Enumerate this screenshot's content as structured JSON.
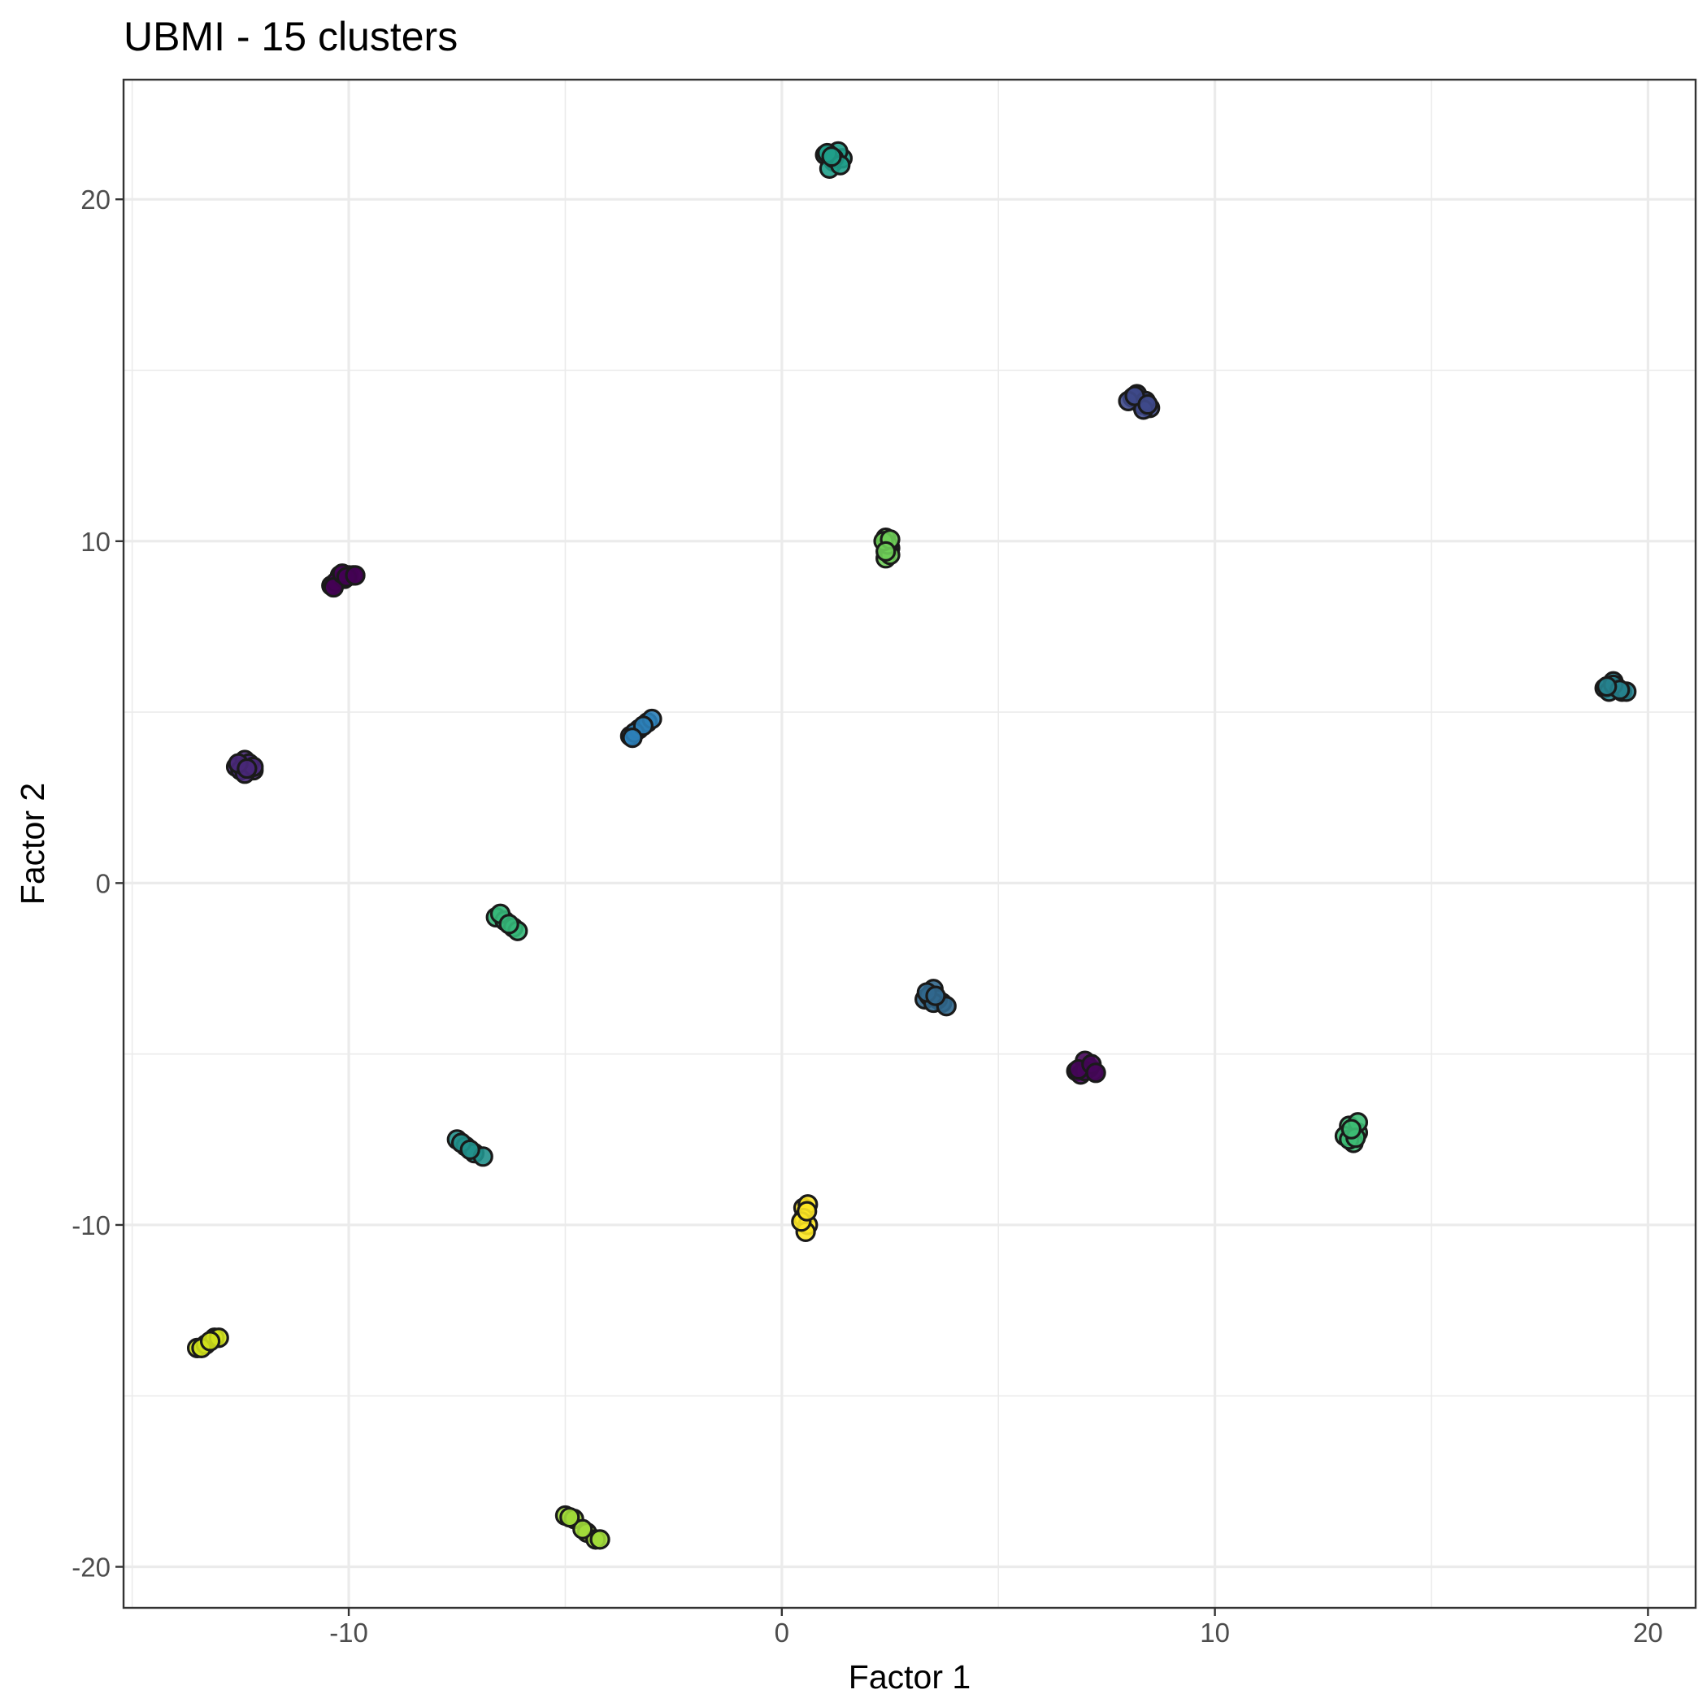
{
  "chart_data": {
    "type": "scatter",
    "title": "UBMI - 15 clusters",
    "xlabel": "Factor 1",
    "ylabel": "Factor 2",
    "xlim": [
      -15.2,
      21.1
    ],
    "ylim": [
      -21.2,
      23.5
    ],
    "x_ticks": [
      -10,
      0,
      10,
      20
    ],
    "y_ticks": [
      -20,
      -10,
      0,
      10,
      20
    ],
    "x_tick_labels": [
      "-10",
      "0",
      "10",
      "20"
    ],
    "y_tick_labels": [
      "-20",
      "-10",
      "0",
      "10",
      "20"
    ],
    "x_minor_ticks": [
      -15,
      -5,
      5,
      15
    ],
    "y_minor_ticks": [
      -15,
      -5,
      5,
      15
    ],
    "grid": true,
    "legend": "none",
    "series": [
      {
        "color": "#440154",
        "points": [
          [
            -10.4,
            8.7
          ],
          [
            -10.2,
            9.0
          ],
          [
            -10.0,
            9.0
          ],
          [
            -10.3,
            8.8
          ],
          [
            -10.1,
            8.9
          ],
          [
            -9.9,
            9.0
          ],
          [
            -10.35,
            8.65
          ],
          [
            -10.15,
            9.05
          ],
          [
            -10.05,
            8.95
          ],
          [
            -9.85,
            9.0
          ]
        ]
      },
      {
        "color": "#46055a",
        "points": [
          [
            6.8,
            -5.5
          ],
          [
            7.0,
            -5.2
          ],
          [
            7.2,
            -5.5
          ],
          [
            6.9,
            -5.6
          ],
          [
            7.1,
            -5.4
          ],
          [
            7.0,
            -5.5
          ],
          [
            6.85,
            -5.45
          ],
          [
            7.15,
            -5.3
          ],
          [
            7.25,
            -5.55
          ]
        ]
      },
      {
        "color": "#482878",
        "points": [
          [
            -12.6,
            3.4
          ],
          [
            -12.4,
            3.6
          ],
          [
            -12.2,
            3.3
          ],
          [
            -12.5,
            3.3
          ],
          [
            -12.3,
            3.5
          ],
          [
            -12.4,
            3.2
          ],
          [
            -12.2,
            3.4
          ],
          [
            -12.55,
            3.5
          ],
          [
            -12.35,
            3.35
          ]
        ]
      },
      {
        "color": "#3e4989",
        "points": [
          [
            8.1,
            14.2
          ],
          [
            8.3,
            14.0
          ],
          [
            8.5,
            13.9
          ],
          [
            8.2,
            14.3
          ],
          [
            8.4,
            14.1
          ],
          [
            8.0,
            14.1
          ],
          [
            8.35,
            13.85
          ],
          [
            8.15,
            14.25
          ],
          [
            8.45,
            14.0
          ]
        ]
      },
      {
        "color": "#31688e",
        "points": [
          [
            3.3,
            -3.4
          ],
          [
            3.5,
            -3.1
          ],
          [
            3.7,
            -3.5
          ],
          [
            3.4,
            -3.3
          ],
          [
            3.6,
            -3.4
          ],
          [
            3.5,
            -3.5
          ],
          [
            3.8,
            -3.6
          ],
          [
            3.35,
            -3.2
          ],
          [
            3.55,
            -3.3
          ]
        ]
      },
      {
        "color": "#2c7fb8",
        "points": [
          [
            -3.5,
            4.3
          ],
          [
            -3.3,
            4.5
          ],
          [
            -3.1,
            4.7
          ],
          [
            -3.0,
            4.8
          ],
          [
            -3.4,
            4.4
          ],
          [
            -3.2,
            4.6
          ],
          [
            -3.45,
            4.25
          ]
        ]
      },
      {
        "color": "#26828e",
        "points": [
          [
            19.0,
            5.7
          ],
          [
            19.2,
            5.9
          ],
          [
            19.4,
            5.6
          ],
          [
            19.1,
            5.6
          ],
          [
            19.3,
            5.7
          ],
          [
            19.5,
            5.6
          ],
          [
            19.2,
            5.8
          ],
          [
            19.35,
            5.65
          ],
          [
            19.05,
            5.75
          ]
        ]
      },
      {
        "color": "#21918c",
        "points": [
          [
            -7.5,
            -7.5
          ],
          [
            -7.3,
            -7.7
          ],
          [
            -7.1,
            -7.9
          ],
          [
            -6.9,
            -8.0
          ],
          [
            -7.4,
            -7.6
          ],
          [
            -7.2,
            -7.8
          ]
        ]
      },
      {
        "color": "#1f9e89",
        "points": [
          [
            1.0,
            21.3
          ],
          [
            1.2,
            21.1
          ],
          [
            1.4,
            21.2
          ],
          [
            1.1,
            20.9
          ],
          [
            1.3,
            21.4
          ],
          [
            1.2,
            21.2
          ],
          [
            1.05,
            21.35
          ],
          [
            1.35,
            21.0
          ],
          [
            1.15,
            21.25
          ]
        ]
      },
      {
        "color": "#35b779",
        "points": [
          [
            -6.6,
            -1.0
          ],
          [
            -6.4,
            -1.1
          ],
          [
            -6.2,
            -1.3
          ],
          [
            -6.1,
            -1.4
          ],
          [
            -6.5,
            -0.9
          ],
          [
            -6.3,
            -1.2
          ]
        ]
      },
      {
        "color": "#3dbc74",
        "points": [
          [
            13.1,
            -7.1
          ],
          [
            13.3,
            -7.3
          ],
          [
            13.2,
            -7.6
          ],
          [
            13.0,
            -7.4
          ],
          [
            13.3,
            -7.0
          ],
          [
            13.1,
            -7.5
          ],
          [
            13.25,
            -7.45
          ],
          [
            13.15,
            -7.2
          ]
        ]
      },
      {
        "color": "#6ece58",
        "points": [
          [
            2.4,
            10.1
          ],
          [
            2.5,
            9.8
          ],
          [
            2.4,
            9.5
          ],
          [
            2.5,
            9.6
          ],
          [
            2.45,
            9.9
          ],
          [
            2.35,
            10.0
          ],
          [
            2.5,
            10.05
          ],
          [
            2.4,
            9.7
          ]
        ]
      },
      {
        "color": "#a0da39",
        "points": [
          [
            -5.0,
            -18.5
          ],
          [
            -4.8,
            -18.6
          ],
          [
            -4.5,
            -19.0
          ],
          [
            -4.3,
            -19.2
          ],
          [
            -4.6,
            -18.9
          ],
          [
            -4.2,
            -19.2
          ],
          [
            -4.9,
            -18.55
          ]
        ]
      },
      {
        "color": "#d0e11c",
        "points": [
          [
            -13.5,
            -13.6
          ],
          [
            -13.3,
            -13.5
          ],
          [
            -13.1,
            -13.3
          ],
          [
            -13.4,
            -13.6
          ],
          [
            -13.0,
            -13.3
          ],
          [
            -13.2,
            -13.4
          ]
        ]
      },
      {
        "color": "#fde725",
        "points": [
          [
            0.5,
            -9.5
          ],
          [
            0.6,
            -9.4
          ],
          [
            0.5,
            -9.8
          ],
          [
            0.6,
            -10.0
          ],
          [
            0.55,
            -10.2
          ],
          [
            0.45,
            -9.9
          ],
          [
            0.58,
            -9.6
          ]
        ]
      }
    ]
  }
}
